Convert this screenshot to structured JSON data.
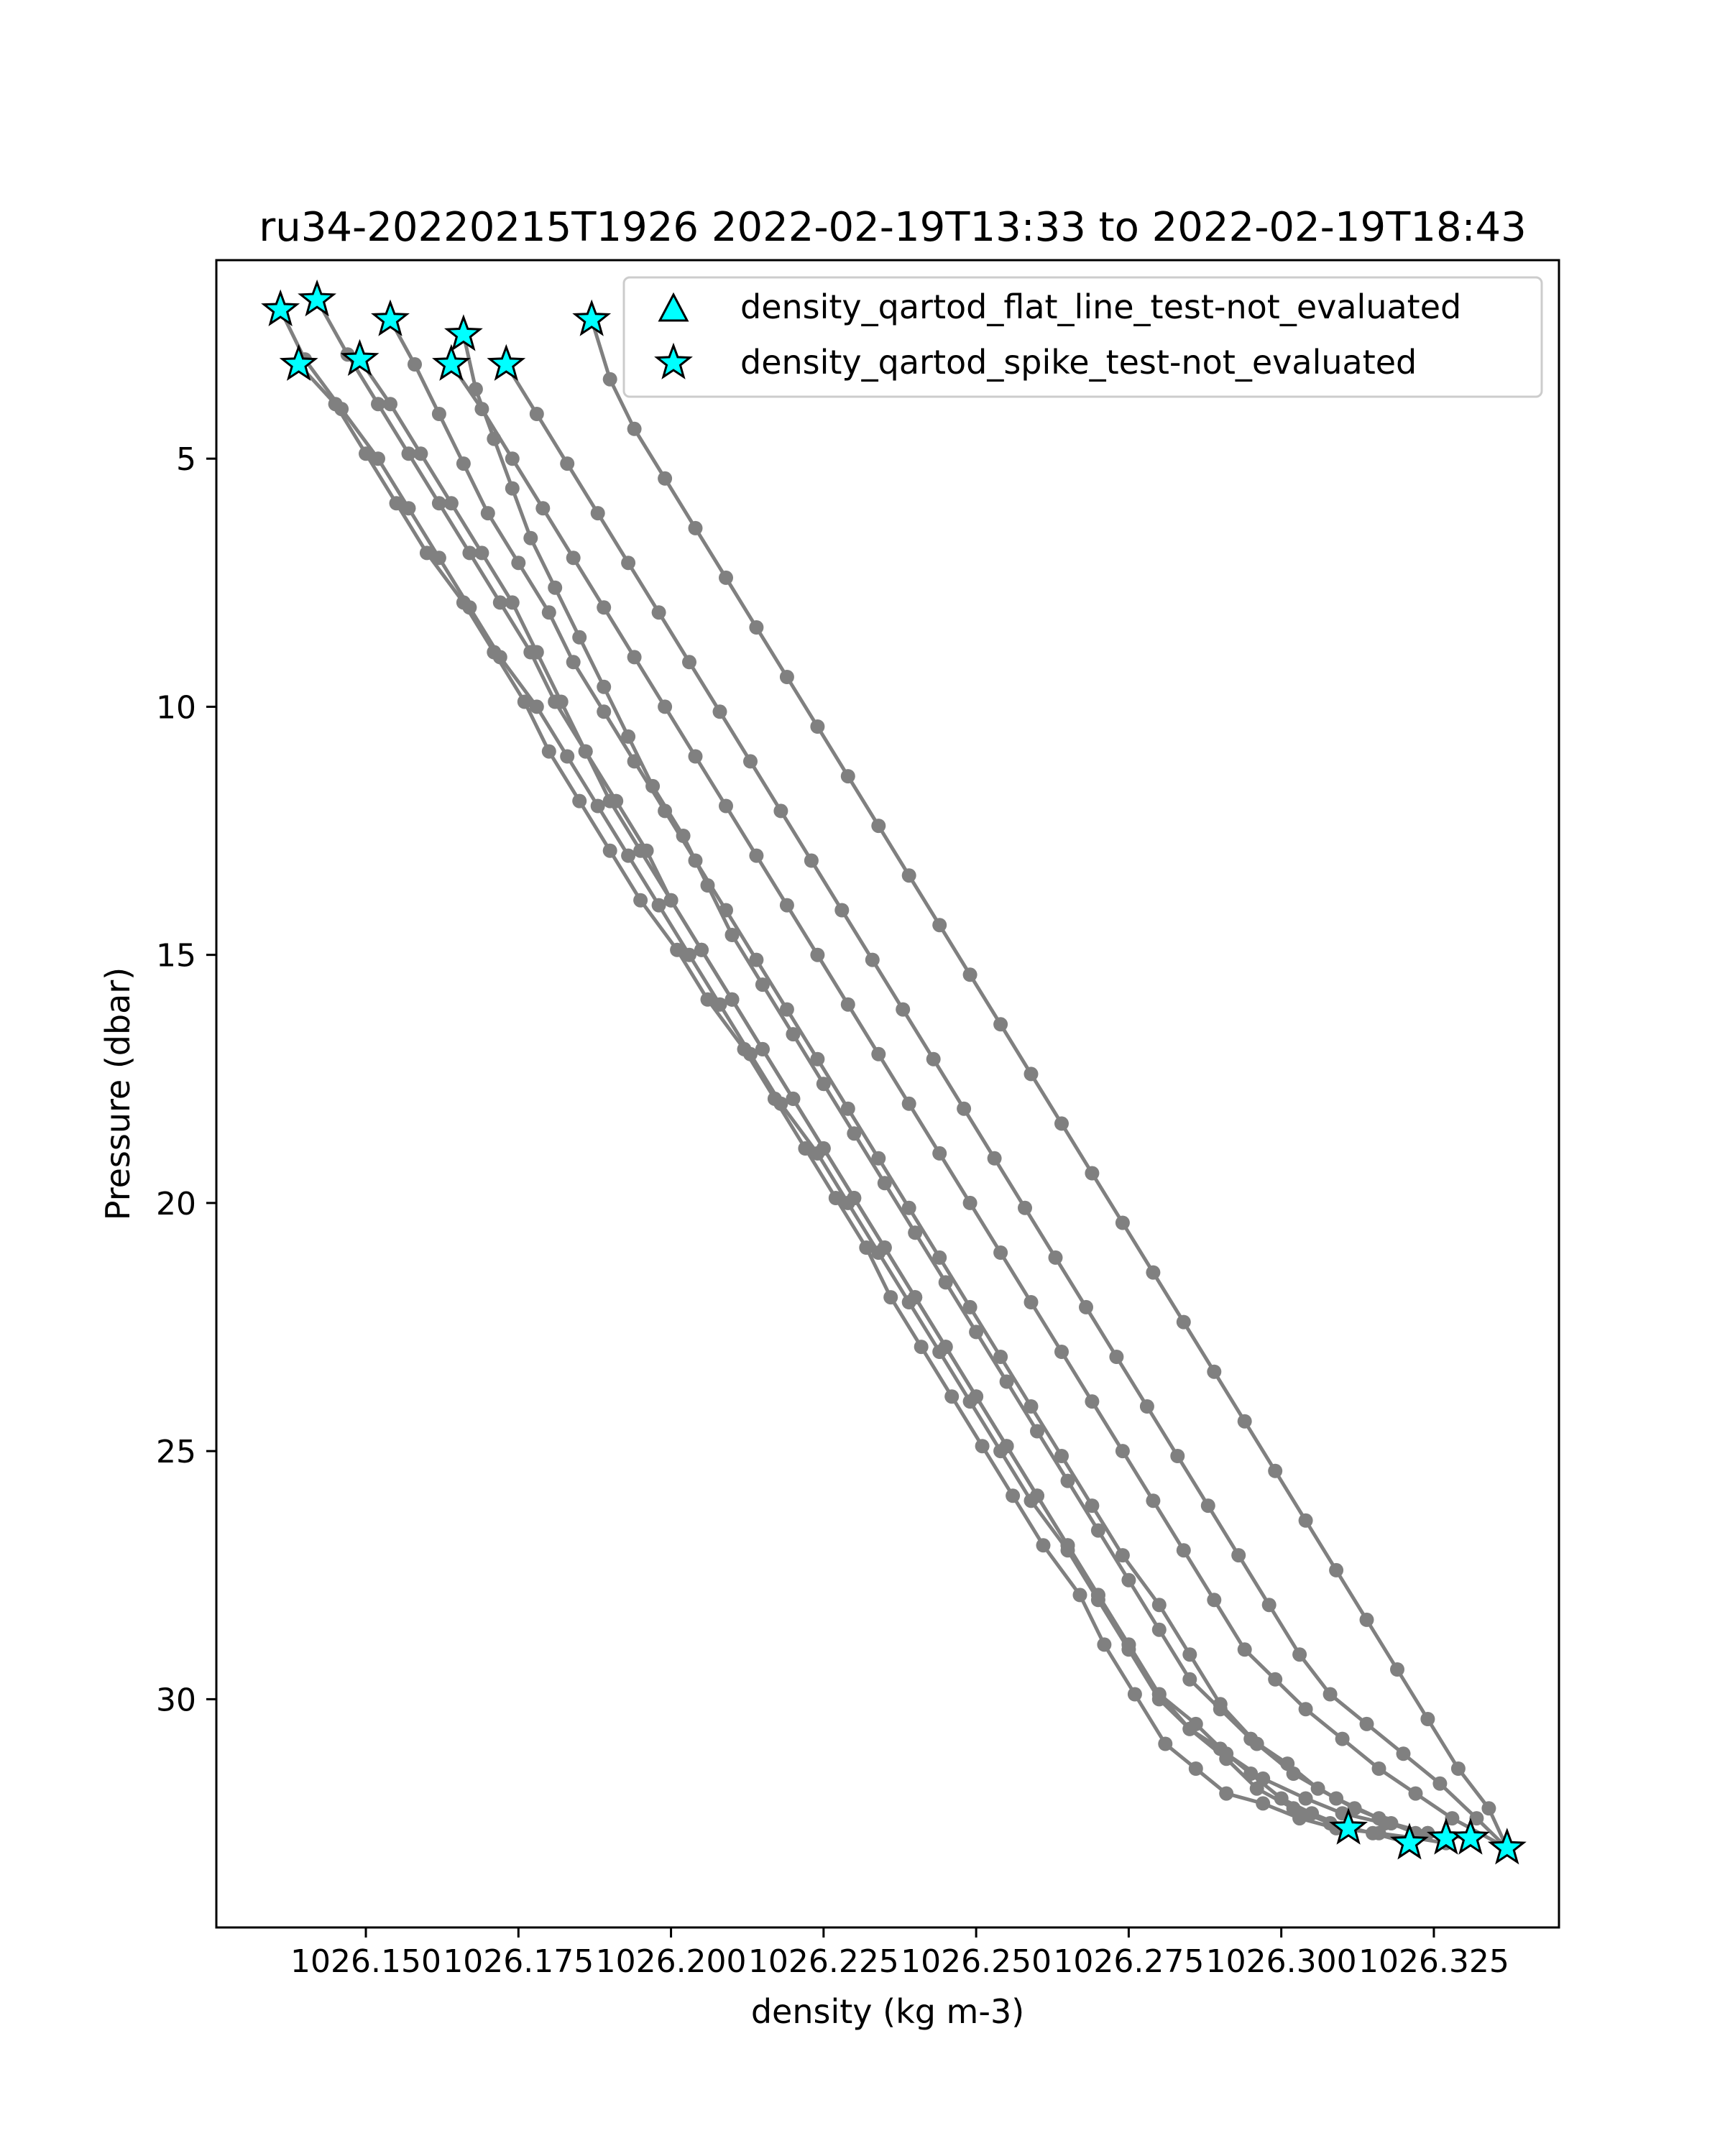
{
  "chart_data": {
    "type": "line",
    "title": "ru34-20220215T1926 2022-02-19T13:33 to 2022-02-19T18:43",
    "xlabel": "density (kg m-3)",
    "ylabel": "Pressure (dbar)",
    "xlim": [
      1026.1255,
      1026.3455
    ],
    "ylim": [
      34.6,
      1.0
    ],
    "y_inverted": true,
    "grid": false,
    "line_color": "#808080",
    "marker_color": "#00ffff",
    "x_ticks": [
      "1026.150",
      "1026.175",
      "1026.200",
      "1026.225",
      "1026.250",
      "1026.275",
      "1026.300",
      "1026.325"
    ],
    "x_tick_values": [
      1026.15,
      1026.175,
      1026.2,
      1026.225,
      1026.25,
      1026.275,
      1026.3,
      1026.325
    ],
    "y_ticks": [
      "5",
      "10",
      "15",
      "20",
      "25",
      "30"
    ],
    "y_tick_values": [
      5,
      10,
      15,
      20,
      25,
      30
    ],
    "legend": {
      "placement": "top-right",
      "entries": [
        {
          "label": "density_qartod_flat_line_test-not_evaluated",
          "marker": "triangle"
        },
        {
          "label": "density_qartod_spike_test-not_evaluated",
          "marker": "star"
        }
      ]
    },
    "series": [
      {
        "x": [
          1026.136,
          1026.14,
          1026.146,
          1026.152,
          1026.157,
          1026.162,
          1026.167,
          1026.172,
          1026.178,
          1026.183,
          1026.188,
          1026.193,
          1026.198,
          1026.203,
          1026.208,
          1026.213,
          1026.218,
          1026.224,
          1026.229,
          1026.234,
          1026.239,
          1026.244,
          1026.249,
          1026.254,
          1026.259,
          1026.265,
          1026.27,
          1026.275,
          1026.28,
          1026.285,
          1026.29,
          1026.295,
          1026.3,
          1026.305,
          1026.311
        ],
        "y": [
          2.0,
          3.0,
          4.0,
          5.0,
          6.0,
          7.0,
          8.0,
          9.0,
          10.0,
          11.0,
          12.0,
          13.0,
          14.0,
          15.0,
          16.0,
          17.0,
          18.0,
          19.0,
          20.0,
          21.0,
          22.0,
          23.0,
          24.0,
          25.0,
          26.0,
          27.0,
          28.0,
          29.0,
          30.0,
          30.6,
          31.0,
          31.5,
          32.0,
          32.3,
          32.6
        ]
      },
      {
        "x": [
          1026.142,
          1026.147,
          1026.152,
          1026.157,
          1026.162,
          1026.167,
          1026.172,
          1026.177,
          1026.181,
          1026.186,
          1026.191,
          1026.196,
          1026.2,
          1026.205,
          1026.21,
          1026.215,
          1026.22,
          1026.225,
          1026.23,
          1026.235,
          1026.24,
          1026.245,
          1026.25,
          1026.255,
          1026.26,
          1026.265,
          1026.27,
          1026.275,
          1026.28,
          1026.285,
          1026.291,
          1026.296,
          1026.302,
          1026.308,
          1026.315,
          1026.321
        ],
        "y": [
          1.8,
          2.9,
          3.9,
          4.9,
          5.9,
          6.9,
          7.9,
          8.9,
          9.9,
          10.9,
          11.9,
          12.9,
          13.9,
          14.9,
          15.9,
          16.9,
          17.9,
          18.9,
          19.9,
          20.9,
          21.9,
          22.9,
          23.9,
          24.9,
          25.9,
          26.9,
          27.9,
          28.9,
          29.9,
          30.6,
          31.2,
          31.8,
          32.2,
          32.5,
          32.7,
          32.9
        ]
      },
      {
        "x": [
          1026.154,
          1026.158,
          1026.162,
          1026.166,
          1026.17,
          1026.175,
          1026.18,
          1026.184,
          1026.189,
          1026.194,
          1026.199,
          1026.204,
          1026.209,
          1026.214,
          1026.219,
          1026.224,
          1026.229,
          1026.234,
          1026.239,
          1026.244,
          1026.249,
          1026.254,
          1026.259,
          1026.264,
          1026.269,
          1026.274,
          1026.28,
          1026.285,
          1026.29,
          1026.296,
          1026.302,
          1026.309,
          1026.316,
          1026.322,
          1026.327
        ],
        "y": [
          2.2,
          3.1,
          4.1,
          5.1,
          6.1,
          7.1,
          8.1,
          9.1,
          10.1,
          11.1,
          12.1,
          13.1,
          14.1,
          15.1,
          16.1,
          17.1,
          18.1,
          19.1,
          20.1,
          21.1,
          22.1,
          23.1,
          24.1,
          25.1,
          26.1,
          27.1,
          28.1,
          29.1,
          30.1,
          30.9,
          31.5,
          32.0,
          32.4,
          32.7,
          32.8
        ]
      },
      {
        "x": [
          1026.139,
          1026.145,
          1026.15,
          1026.155,
          1026.16,
          1026.166,
          1026.171,
          1026.176,
          1026.18,
          1026.185,
          1026.19,
          1026.195,
          1026.201,
          1026.206,
          1026.212,
          1026.217,
          1026.222,
          1026.227,
          1026.232,
          1026.236,
          1026.241,
          1026.246,
          1026.251,
          1026.256,
          1026.261,
          1026.267,
          1026.271,
          1026.276,
          1026.281,
          1026.286,
          1026.291,
          1026.297,
          1026.303,
          1026.309,
          1026.316,
          1026.322,
          1026.327
        ],
        "y": [
          3.1,
          3.9,
          4.9,
          5.9,
          6.9,
          7.9,
          8.9,
          9.9,
          10.9,
          11.9,
          12.9,
          13.9,
          14.9,
          15.9,
          16.9,
          17.9,
          18.9,
          19.9,
          20.9,
          21.9,
          22.9,
          23.9,
          24.9,
          25.9,
          26.9,
          27.9,
          28.9,
          29.9,
          30.9,
          31.4,
          31.9,
          32.1,
          32.4,
          32.6,
          32.7,
          32.8,
          32.9
        ]
      },
      {
        "x": [
          1026.149,
          1026.154,
          1026.159,
          1026.164,
          1026.169,
          1026.174,
          1026.178,
          1026.182,
          1026.186,
          1026.19,
          1026.195,
          1026.2,
          1026.205,
          1026.21,
          1026.215,
          1026.22,
          1026.225,
          1026.23,
          1026.235,
          1026.24,
          1026.245,
          1026.25,
          1026.255,
          1026.26,
          1026.265,
          1026.27,
          1026.275,
          1026.28,
          1026.286,
          1026.291,
          1026.297,
          1026.304,
          1026.31,
          1026.317,
          1026.324,
          1026.331
        ],
        "y": [
          3.0,
          3.9,
          4.9,
          5.9,
          6.9,
          7.9,
          8.9,
          9.9,
          10.9,
          11.9,
          12.9,
          13.9,
          14.9,
          15.9,
          16.9,
          17.9,
          18.9,
          19.9,
          20.9,
          21.9,
          22.9,
          23.9,
          24.9,
          25.9,
          26.9,
          27.9,
          28.9,
          29.9,
          30.5,
          31.1,
          31.6,
          32.0,
          32.3,
          32.5,
          32.7,
          32.8
        ]
      },
      {
        "x": [
          1026.166,
          1026.168,
          1026.171,
          1026.174,
          1026.177,
          1026.181,
          1026.185,
          1026.189,
          1026.193,
          1026.197,
          1026.202,
          1026.206,
          1026.21,
          1026.215,
          1026.22,
          1026.225,
          1026.23,
          1026.235,
          1026.24,
          1026.245,
          1026.25,
          1026.255,
          1026.26,
          1026.265,
          1026.27,
          1026.275,
          1026.28,
          1026.285,
          1026.29,
          1026.295,
          1026.301,
          1026.306,
          1026.312,
          1026.318,
          1026.324,
          1026.331
        ],
        "y": [
          2.5,
          3.6,
          4.6,
          5.6,
          6.6,
          7.6,
          8.6,
          9.6,
          10.6,
          11.6,
          12.6,
          13.6,
          14.6,
          15.6,
          16.6,
          17.6,
          18.6,
          19.6,
          20.6,
          21.6,
          22.6,
          23.6,
          24.6,
          25.6,
          26.6,
          27.6,
          28.6,
          29.6,
          30.2,
          30.8,
          31.3,
          31.8,
          32.2,
          32.5,
          32.7,
          32.8
        ]
      },
      {
        "x": [
          1026.164,
          1026.169,
          1026.174,
          1026.179,
          1026.184,
          1026.189,
          1026.194,
          1026.199,
          1026.204,
          1026.209,
          1026.214,
          1026.219,
          1026.224,
          1026.229,
          1026.234,
          1026.239,
          1026.244,
          1026.249,
          1026.254,
          1026.259,
          1026.264,
          1026.269,
          1026.274,
          1026.279,
          1026.284,
          1026.289,
          1026.294,
          1026.299,
          1026.304,
          1026.31,
          1026.316,
          1026.322,
          1026.328,
          1026.337
        ],
        "y": [
          3.1,
          4.0,
          5.0,
          6.0,
          7.0,
          8.0,
          9.0,
          10.0,
          11.0,
          12.0,
          13.0,
          14.0,
          15.0,
          16.0,
          17.0,
          18.0,
          19.0,
          20.0,
          21.0,
          22.0,
          23.0,
          24.0,
          25.0,
          26.0,
          27.0,
          28.0,
          29.0,
          29.6,
          30.2,
          30.8,
          31.4,
          31.9,
          32.4,
          33.0
        ]
      },
      {
        "x": [
          1026.173,
          1026.178,
          1026.183,
          1026.188,
          1026.193,
          1026.198,
          1026.203,
          1026.208,
          1026.213,
          1026.218,
          1026.223,
          1026.228,
          1026.233,
          1026.238,
          1026.243,
          1026.248,
          1026.253,
          1026.258,
          1026.263,
          1026.268,
          1026.273,
          1026.278,
          1026.283,
          1026.288,
          1026.293,
          1026.298,
          1026.303,
          1026.308,
          1026.314,
          1026.32,
          1026.326,
          1026.332,
          1026.337
        ],
        "y": [
          3.1,
          4.1,
          5.1,
          6.1,
          7.1,
          8.1,
          9.1,
          10.1,
          11.1,
          12.1,
          13.1,
          14.1,
          15.1,
          16.1,
          17.1,
          18.1,
          19.1,
          20.1,
          21.1,
          22.1,
          23.1,
          24.1,
          25.1,
          26.1,
          27.1,
          28.1,
          29.1,
          29.9,
          30.5,
          31.1,
          31.7,
          32.4,
          33.0
        ]
      },
      {
        "x": [
          1026.187,
          1026.19,
          1026.194,
          1026.199,
          1026.204,
          1026.209,
          1026.214,
          1026.219,
          1026.224,
          1026.229,
          1026.234,
          1026.239,
          1026.244,
          1026.249,
          1026.254,
          1026.259,
          1026.264,
          1026.269,
          1026.274,
          1026.279,
          1026.284,
          1026.289,
          1026.294,
          1026.299,
          1026.304,
          1026.309,
          1026.314,
          1026.319,
          1026.324,
          1026.329,
          1026.334,
          1026.337
        ],
        "y": [
          2.2,
          3.4,
          4.4,
          5.4,
          6.4,
          7.4,
          8.4,
          9.4,
          10.4,
          11.4,
          12.4,
          13.4,
          14.4,
          15.4,
          16.4,
          17.4,
          18.4,
          19.4,
          20.4,
          21.4,
          22.4,
          23.4,
          24.4,
          25.4,
          26.4,
          27.4,
          28.4,
          29.4,
          30.4,
          31.4,
          32.2,
          33.0
        ]
      }
    ],
    "spike_markers": [
      {
        "x": 1026.136,
        "y": 2.0
      },
      {
        "x": 1026.142,
        "y": 1.8
      },
      {
        "x": 1026.154,
        "y": 2.2
      },
      {
        "x": 1026.139,
        "y": 3.1
      },
      {
        "x": 1026.149,
        "y": 3.0
      },
      {
        "x": 1026.166,
        "y": 2.5
      },
      {
        "x": 1026.164,
        "y": 3.1
      },
      {
        "x": 1026.173,
        "y": 3.1
      },
      {
        "x": 1026.187,
        "y": 2.2
      },
      {
        "x": 1026.311,
        "y": 32.6
      },
      {
        "x": 1026.321,
        "y": 32.9
      },
      {
        "x": 1026.327,
        "y": 32.8
      },
      {
        "x": 1026.331,
        "y": 32.8
      },
      {
        "x": 1026.337,
        "y": 33.0
      }
    ]
  }
}
